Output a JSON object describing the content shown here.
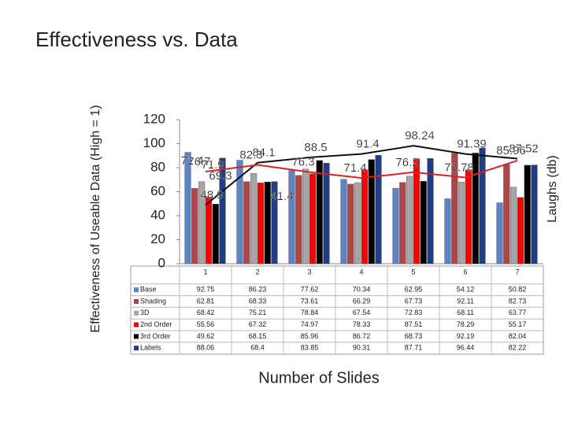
{
  "chart_data": {
    "type": "bar",
    "title": "Effectiveness vs. Data",
    "y_label": "Effectiveness of Useable Data (High = 1)",
    "y2_label": "Laughs (db)",
    "x_label": "Number of Slides",
    "categories": [
      "1",
      "2",
      "3",
      "4",
      "5",
      "6",
      "7"
    ],
    "ylim": [
      0,
      120
    ],
    "yticks": [
      0,
      20,
      40,
      60,
      80,
      100,
      120
    ],
    "series": [
      {
        "name": "Base",
        "color": "#5b84c8",
        "values": [
          92.75,
          86.23,
          77.62,
          70.34,
          62.95,
          54.12,
          50.82
        ]
      },
      {
        "name": "Shading",
        "color": "#a8484c",
        "values": [
          62.81,
          68.33,
          73.61,
          66.29,
          67.73,
          92.11,
          82.73
        ]
      },
      {
        "name": "3D",
        "color": "#a6a6a6",
        "values": [
          68.42,
          75.21,
          78.84,
          67.54,
          72.83,
          68.11,
          63.77
        ]
      },
      {
        "name": "2nd Order",
        "color": "#ff0000",
        "values": [
          55.56,
          67.32,
          74.97,
          78.33,
          87.51,
          78.29,
          55.17
        ]
      },
      {
        "name": "3rd Order",
        "color": "#000000",
        "values": [
          49.62,
          68.15,
          85.96,
          86.72,
          68.73,
          92.19,
          82.04
        ]
      },
      {
        "name": "Labels",
        "color": "#1f3d8a",
        "values": [
          88.06,
          68.4,
          83.85,
          90.31,
          87.71,
          96.44,
          82.22
        ]
      }
    ],
    "lines": [
      {
        "color": "#111111",
        "values": [
          48.9,
          84.1,
          88.5,
          91.4,
          98.24,
          91.39,
          87.52
        ]
      },
      {
        "color": "#e02020",
        "values": [
          76.7,
          82.3,
          76.3,
          71.4,
          76.2,
          71.78,
          85.96
        ]
      }
    ],
    "annotations": [
      "71.4",
      "71.9",
      "69.3",
      "41.4"
    ]
  }
}
